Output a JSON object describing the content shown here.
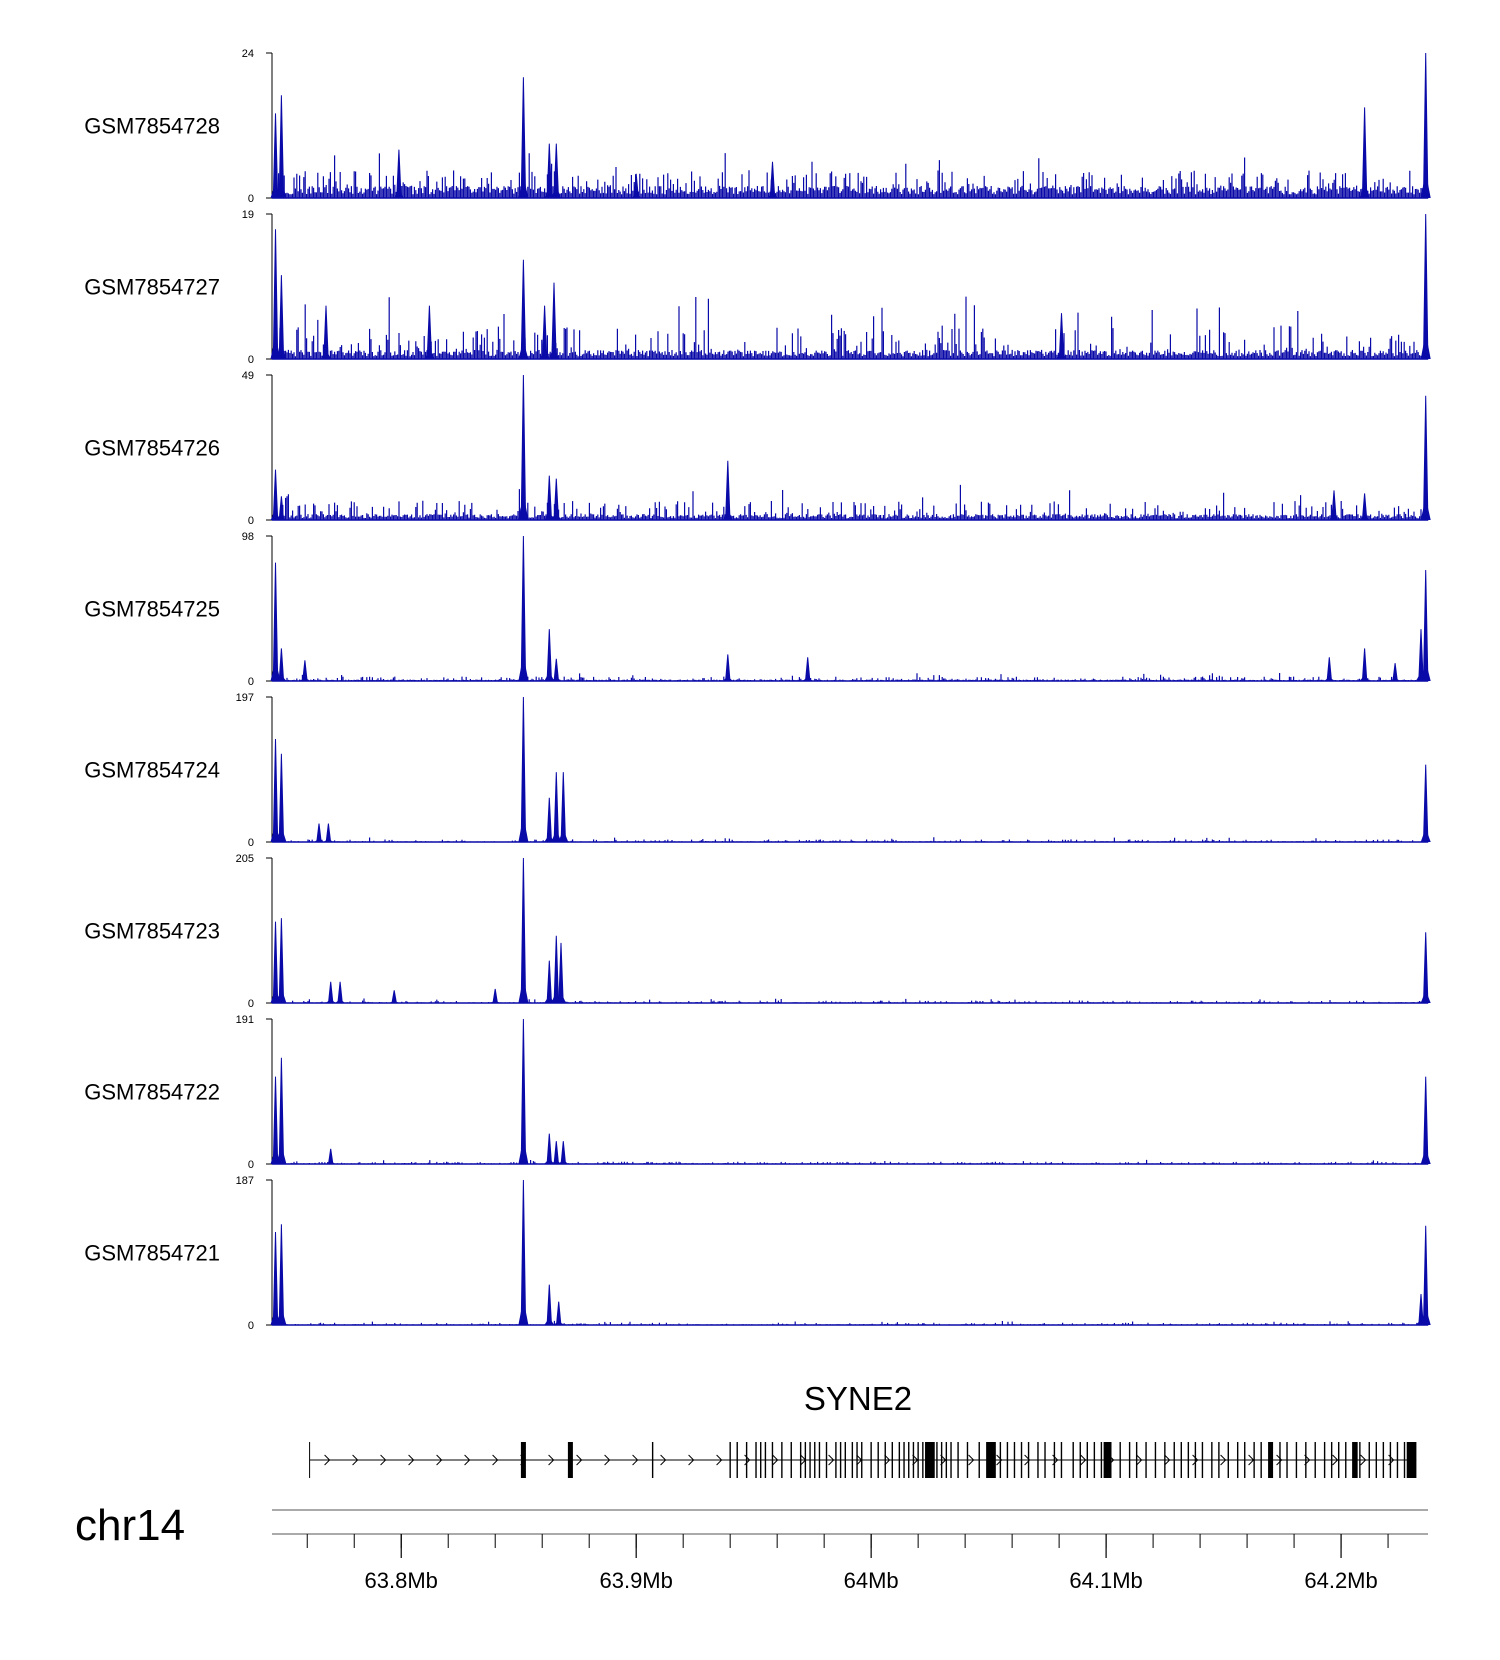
{
  "chart_data": {
    "type": "area",
    "title": "",
    "xlabel": "",
    "ylabel": "",
    "grid": false,
    "legend": "none",
    "chromosome": "chr14",
    "xlim_mb": [
      63.745,
      64.237
    ],
    "x_ticks_mb": [
      63.8,
      63.9,
      64.0,
      64.1,
      64.2
    ],
    "x_tick_labels": [
      "63.8Mb",
      "63.9Mb",
      "64Mb",
      "64.1Mb",
      "64.2Mb"
    ],
    "x_minor_tick_step_mb": 0.02,
    "colors": {
      "signal": "#0a0aa8",
      "axis": "#000000",
      "gene": "#000000",
      "ideogram": "#777777"
    },
    "series": [
      {
        "name": "GSM7854728",
        "ymax": 24,
        "ymax_label": "24",
        "ymin_label": "0",
        "baseline": 2.0,
        "noise": 2.6,
        "peaks": [
          [
            63.7465,
            14
          ],
          [
            63.749,
            17
          ],
          [
            63.799,
            8
          ],
          [
            63.852,
            20
          ],
          [
            63.863,
            9
          ],
          [
            63.866,
            9
          ],
          [
            63.9,
            4
          ],
          [
            63.958,
            6
          ],
          [
            64.21,
            15
          ],
          [
            64.236,
            24
          ]
        ]
      },
      {
        "name": "GSM7854727",
        "ymax": 19,
        "ymax_label": "19",
        "ymin_label": "0",
        "baseline": 1.2,
        "noise": 3.2,
        "peaks": [
          [
            63.7465,
            17
          ],
          [
            63.749,
            11
          ],
          [
            63.768,
            7
          ],
          [
            63.812,
            7
          ],
          [
            63.852,
            13
          ],
          [
            63.861,
            7
          ],
          [
            63.865,
            10
          ],
          [
            64.081,
            6
          ],
          [
            64.236,
            19
          ]
        ]
      },
      {
        "name": "GSM7854726",
        "ymax": 49,
        "ymax_label": "49",
        "ymin_label": "0",
        "baseline": 2.0,
        "noise": 4.5,
        "peaks": [
          [
            63.7465,
            17
          ],
          [
            63.749,
            8
          ],
          [
            63.852,
            49
          ],
          [
            63.863,
            15
          ],
          [
            63.866,
            14
          ],
          [
            63.939,
            20
          ],
          [
            64.197,
            10
          ],
          [
            64.21,
            9
          ],
          [
            64.236,
            42
          ]
        ]
      },
      {
        "name": "GSM7854725",
        "ymax": 98,
        "ymax_label": "98",
        "ymin_label": "0",
        "baseline": 1.0,
        "noise": 2.0,
        "peaks": [
          [
            63.7465,
            80
          ],
          [
            63.749,
            22
          ],
          [
            63.759,
            14
          ],
          [
            63.852,
            98
          ],
          [
            63.863,
            35
          ],
          [
            63.866,
            15
          ],
          [
            63.939,
            18
          ],
          [
            63.973,
            16
          ],
          [
            64.195,
            16
          ],
          [
            64.21,
            22
          ],
          [
            64.223,
            12
          ],
          [
            64.234,
            35
          ],
          [
            64.236,
            75
          ]
        ]
      },
      {
        "name": "GSM7854724",
        "ymax": 197,
        "ymax_label": "197",
        "ymin_label": "0",
        "baseline": 1.0,
        "noise": 2.5,
        "peaks": [
          [
            63.7465,
            140
          ],
          [
            63.749,
            120
          ],
          [
            63.765,
            25
          ],
          [
            63.769,
            25
          ],
          [
            63.852,
            197
          ],
          [
            63.863,
            60
          ],
          [
            63.866,
            95
          ],
          [
            63.869,
            95
          ],
          [
            64.236,
            105
          ]
        ]
      },
      {
        "name": "GSM7854723",
        "ymax": 205,
        "ymax_label": "205",
        "ymin_label": "0",
        "baseline": 1.0,
        "noise": 2.5,
        "peaks": [
          [
            63.7465,
            115
          ],
          [
            63.749,
            120
          ],
          [
            63.77,
            30
          ],
          [
            63.774,
            30
          ],
          [
            63.797,
            18
          ],
          [
            63.852,
            205
          ],
          [
            63.863,
            60
          ],
          [
            63.866,
            95
          ],
          [
            63.868,
            85
          ],
          [
            63.84,
            20
          ],
          [
            64.236,
            100
          ]
        ]
      },
      {
        "name": "GSM7854722",
        "ymax": 191,
        "ymax_label": "191",
        "ymin_label": "0",
        "baseline": 1.0,
        "noise": 2.0,
        "peaks": [
          [
            63.7465,
            115
          ],
          [
            63.749,
            140
          ],
          [
            63.77,
            20
          ],
          [
            63.852,
            191
          ],
          [
            63.863,
            40
          ],
          [
            63.866,
            30
          ],
          [
            63.869,
            30
          ],
          [
            64.236,
            115
          ]
        ]
      },
      {
        "name": "GSM7854721",
        "ymax": 187,
        "ymax_label": "187",
        "ymin_label": "0",
        "baseline": 1.0,
        "noise": 2.0,
        "peaks": [
          [
            63.7465,
            120
          ],
          [
            63.749,
            130
          ],
          [
            63.852,
            187
          ],
          [
            63.863,
            52
          ],
          [
            63.867,
            30
          ],
          [
            64.234,
            40
          ],
          [
            64.236,
            128
          ]
        ]
      }
    ],
    "gene": {
      "name": "SYNE2",
      "strand": "+",
      "start_mb": 63.761,
      "end_mb": 64.232,
      "exons_mb": [
        63.852,
        63.872,
        63.907,
        63.94,
        63.943,
        63.947,
        63.951,
        63.953,
        63.955,
        63.958,
        63.962,
        63.966,
        63.97,
        63.972,
        63.974,
        63.976,
        63.978,
        63.981,
        63.985,
        63.987,
        63.989,
        63.992,
        63.994,
        63.996,
        64.0,
        64.003,
        64.006,
        64.009,
        64.012,
        64.014,
        64.016,
        64.018,
        64.02,
        64.022,
        64.024,
        64.026,
        64.028,
        64.03,
        64.032,
        64.034,
        64.037,
        64.041,
        64.046,
        64.05,
        64.052,
        64.055,
        64.058,
        64.061,
        64.064,
        64.067,
        64.071,
        64.074,
        64.078,
        64.081,
        64.086,
        64.089,
        64.092,
        64.095,
        64.098,
        64.102,
        64.106,
        64.11,
        64.113,
        64.117,
        64.121,
        64.125,
        64.129,
        64.132,
        64.135,
        64.138,
        64.141,
        64.145,
        64.148,
        64.152,
        64.156,
        64.159,
        64.163,
        64.166,
        64.17,
        64.174,
        64.177,
        64.181,
        64.185,
        64.189,
        64.193,
        64.196,
        64.199,
        64.202,
        64.205,
        64.208,
        64.212,
        64.215,
        64.218,
        64.221,
        64.224,
        64.227,
        64.23
      ],
      "thick_exons_mb": [
        63.852,
        63.872,
        64.024,
        64.026,
        64.05,
        64.052,
        64.1,
        64.101,
        64.17,
        64.206,
        64.229,
        64.231
      ]
    }
  }
}
